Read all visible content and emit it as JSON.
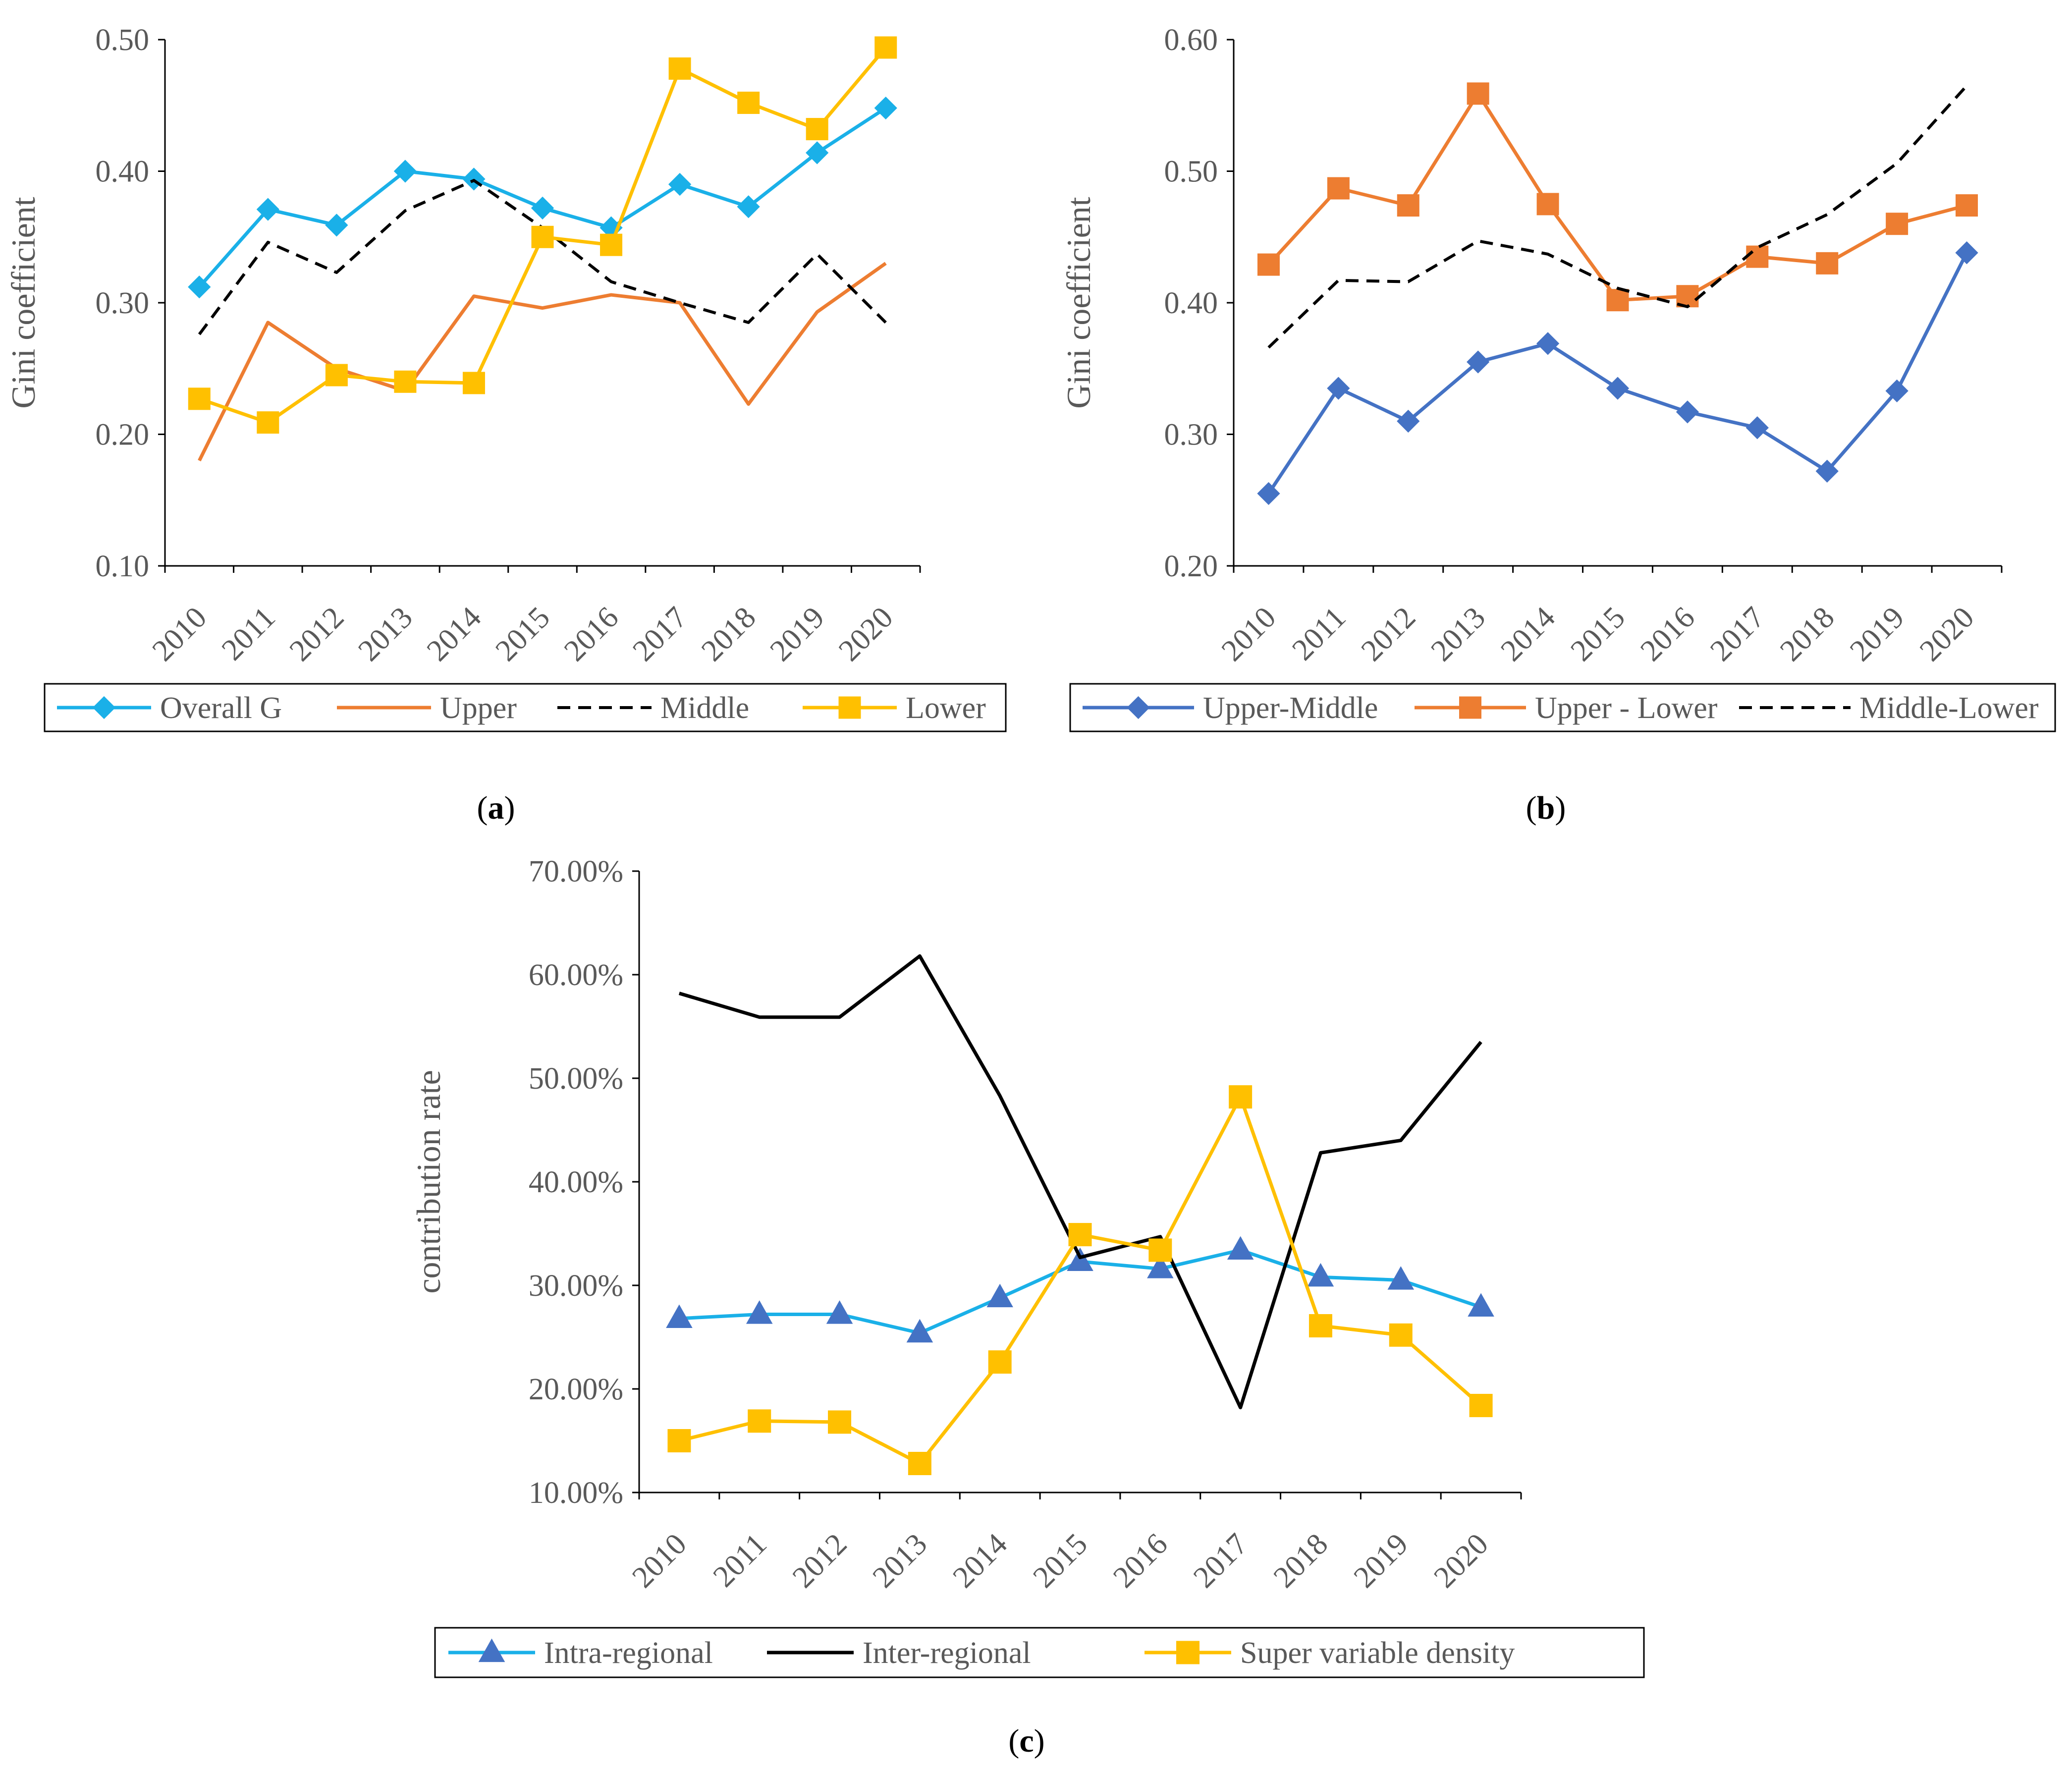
{
  "chart_data": [
    {
      "type": "line",
      "panel_label": "a",
      "ylabel": "Gini coefficient",
      "xlabel": "",
      "ylim": [
        0.1,
        0.5
      ],
      "yticks": [
        "0.10",
        "0.20",
        "0.30",
        "0.40",
        "0.50"
      ],
      "ytick_values": [
        0.1,
        0.2,
        0.3,
        0.4,
        0.5
      ],
      "categories": [
        "2010",
        "2011",
        "2012",
        "2013",
        "2014",
        "2015",
        "2016",
        "2017",
        "2018",
        "2019",
        "2020"
      ],
      "legend_position": "bottom",
      "series": [
        {
          "name": "Overall G",
          "color": "#1ab0e8",
          "dash": "solid",
          "marker": "diamond",
          "values": [
            0.312,
            0.371,
            0.359,
            0.4,
            0.394,
            0.372,
            0.357,
            0.39,
            0.373,
            0.414,
            0.448
          ]
        },
        {
          "name": "Upper",
          "color": "#ed7d31",
          "dash": "solid",
          "marker": "none",
          "values": [
            0.18,
            0.285,
            0.25,
            0.233,
            0.305,
            0.296,
            0.306,
            0.3,
            0.223,
            0.293,
            0.33
          ]
        },
        {
          "name": "Middle",
          "color": "#000000",
          "dash": "dashed",
          "marker": "none",
          "values": [
            0.276,
            0.346,
            0.323,
            0.37,
            0.393,
            0.357,
            0.316,
            0.3,
            0.285,
            0.337,
            0.285
          ]
        },
        {
          "name": "Lower",
          "color": "#ffc000",
          "dash": "solid",
          "marker": "square",
          "values": [
            0.227,
            0.209,
            0.245,
            0.24,
            0.239,
            0.35,
            0.344,
            0.478,
            0.452,
            0.432,
            0.494
          ]
        }
      ]
    },
    {
      "type": "line",
      "panel_label": "b",
      "ylabel": "Gini coefficient",
      "xlabel": "",
      "ylim": [
        0.2,
        0.6
      ],
      "yticks": [
        "0.20",
        "0.30",
        "0.40",
        "0.50",
        "0.60"
      ],
      "ytick_values": [
        0.2,
        0.3,
        0.4,
        0.5,
        0.6
      ],
      "categories": [
        "2010",
        "2011",
        "2012",
        "2013",
        "2014",
        "2015",
        "2016",
        "2017",
        "2018",
        "2019",
        "2020"
      ],
      "legend_position": "bottom",
      "series": [
        {
          "name": "Upper-Middle",
          "color": "#4472c4",
          "dash": "solid",
          "marker": "diamond",
          "values": [
            0.255,
            0.335,
            0.31,
            0.355,
            0.369,
            0.335,
            0.317,
            0.305,
            0.272,
            0.333,
            0.438
          ]
        },
        {
          "name": "Upper - Lower",
          "color": "#ed7d31",
          "dash": "solid",
          "marker": "square",
          "values": [
            0.429,
            0.487,
            0.474,
            0.559,
            0.475,
            0.402,
            0.405,
            0.435,
            0.43,
            0.46,
            0.474
          ]
        },
        {
          "name": "Middle-Lower",
          "color": "#000000",
          "dash": "dashed",
          "marker": "none",
          "values": [
            0.366,
            0.417,
            0.416,
            0.447,
            0.437,
            0.411,
            0.397,
            0.442,
            0.467,
            0.506,
            0.565
          ]
        }
      ]
    },
    {
      "type": "line",
      "panel_label": "c",
      "ylabel": "contribution rate",
      "xlabel": "",
      "ylim": [
        10,
        70
      ],
      "yticks": [
        "10.00%",
        "20.00%",
        "30.00%",
        "40.00%",
        "50.00%",
        "60.00%",
        "70.00%"
      ],
      "ytick_values": [
        10,
        20,
        30,
        40,
        50,
        60,
        70
      ],
      "categories": [
        "2010",
        "2011",
        "2012",
        "2013",
        "2014",
        "2015",
        "2016",
        "2017",
        "2018",
        "2019",
        "2020"
      ],
      "legend_position": "bottom",
      "series": [
        {
          "name": "Intra-regional",
          "color": "#1ab0e8",
          "marker_color": "#4472c4",
          "dash": "solid",
          "marker": "triangle",
          "values": [
            26.8,
            27.2,
            27.2,
            25.4,
            28.8,
            32.3,
            31.6,
            33.4,
            30.8,
            30.5,
            27.9
          ]
        },
        {
          "name": "Inter-regional",
          "color": "#000000",
          "dash": "solid",
          "marker": "none",
          "values": [
            58.2,
            55.9,
            55.9,
            61.8,
            48.3,
            32.7,
            34.7,
            18.2,
            42.8,
            44.0,
            53.5
          ]
        },
        {
          "name": "Super variable density",
          "color": "#ffc000",
          "dash": "solid",
          "marker": "square",
          "values": [
            15.0,
            16.9,
            16.8,
            12.8,
            22.6,
            34.9,
            33.4,
            48.2,
            26.1,
            25.2,
            18.4
          ]
        }
      ]
    }
  ]
}
